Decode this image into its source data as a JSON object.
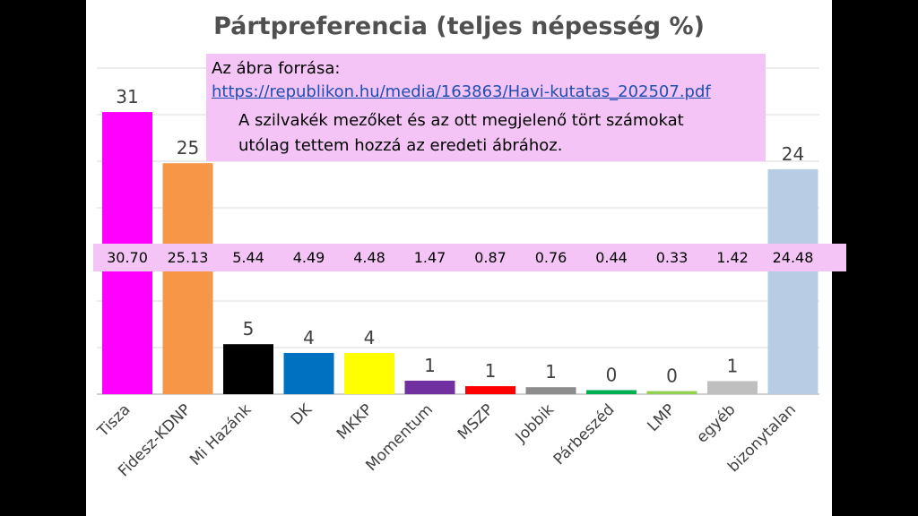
{
  "chart_data": {
    "type": "bar",
    "title": "Pártpreferencia (teljes népesség %)",
    "categories": [
      "Tisza",
      "Fidesz-KDNP",
      "Mi Hazánk",
      "DK",
      "MKKP",
      "Momentum",
      "MSZP",
      "Jobbik",
      "Párbeszéd",
      "LMP",
      "egyéb",
      "bizonytalan"
    ],
    "values": [
      30.7,
      25.13,
      5.44,
      4.49,
      4.48,
      1.47,
      0.87,
      0.76,
      0.44,
      0.33,
      1.42,
      24.48
    ],
    "data_labels": [
      "31",
      "25",
      "5",
      "4",
      "4",
      "1",
      "1",
      "1",
      "0",
      "0",
      "1",
      "24"
    ],
    "exact_labels": [
      "30.70",
      "25.13",
      "5.44",
      "4.49",
      "4.48",
      "1.47",
      "0.87",
      "0.76",
      "0.44",
      "0.33",
      "1.42",
      "24.48"
    ],
    "colors": [
      "#ff00ff",
      "#f79646",
      "#000000",
      "#0070c0",
      "#ffff00",
      "#7030a0",
      "#ff0000",
      "#8c8c8c",
      "#00b050",
      "#92d050",
      "#bfbfbf",
      "#b8cce4"
    ],
    "ylim": [
      0,
      31
    ],
    "grid": true,
    "xlabel": "",
    "ylabel": ""
  },
  "annotation": {
    "source_label": "Az ábra forrása:",
    "source_url": "https://republikon.hu/media/163863/Havi-kutatas_202507.pdf",
    "note_line1": "A szilvakék mezőket és az ott megjelenő tört számokat",
    "note_line2": "utólag tettem hozzá az eredeti ábrához."
  }
}
